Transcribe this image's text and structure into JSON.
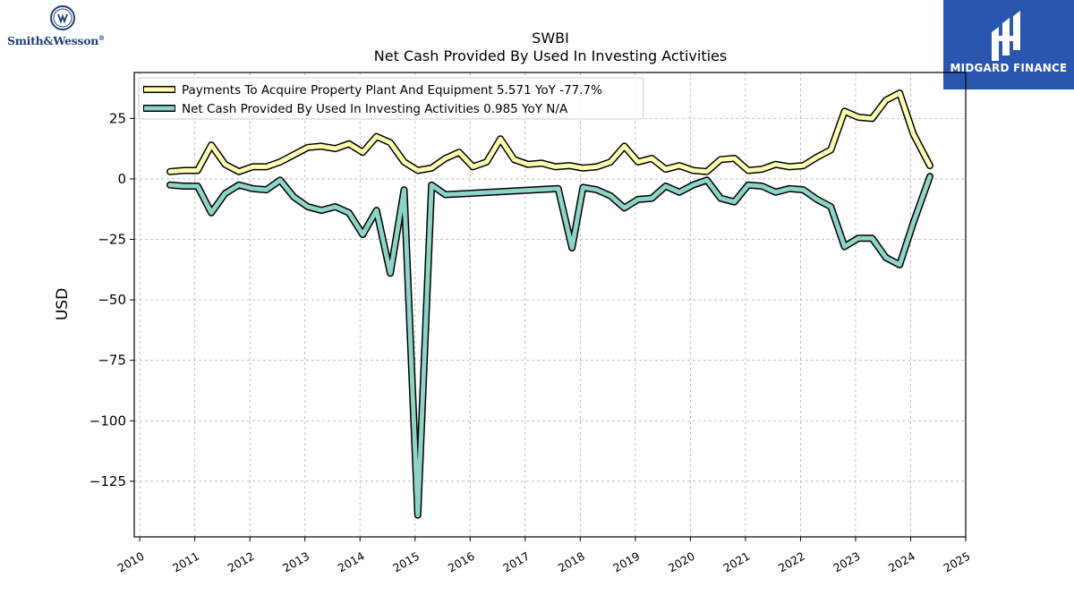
{
  "header": {
    "left_brand": "Smith&Wesson",
    "left_brand_mark": "®",
    "right_brand": "MIDGARD FINANCE"
  },
  "colors": {
    "series_1": "#ffffb3",
    "series_2": "#8dd3c7",
    "outline": "#000000",
    "grid": "#b0b0b0",
    "brand_blue": "#2a56b0",
    "brand_text_blue": "#1f3f7a"
  },
  "chart_data": {
    "type": "line",
    "title": "SWBI",
    "subtitle": "Net Cash Provided By Used In Investing Activities",
    "xlabel": "",
    "ylabel": "USD",
    "xlim": [
      2009.9,
      2025.0
    ],
    "ylim": [
      -148,
      44
    ],
    "grid": true,
    "legend_position": "top-left",
    "x_ticks": [
      2010,
      2011,
      2012,
      2013,
      2014,
      2015,
      2016,
      2017,
      2018,
      2019,
      2020,
      2021,
      2022,
      2023,
      2024,
      2025
    ],
    "x_tick_labels": [
      "2010",
      "2011",
      "2012",
      "2013",
      "2014",
      "2015",
      "2016",
      "2017",
      "2018",
      "2019",
      "2020",
      "2021",
      "2022",
      "2023",
      "2024",
      "2025"
    ],
    "y_ticks": [
      25,
      0,
      -25,
      -50,
      -75,
      -100,
      -125
    ],
    "y_tick_labels": [
      "25",
      "0",
      "−25",
      "−50",
      "−75",
      "−100",
      "−125"
    ],
    "series": [
      {
        "name": "Payments To Acquire Property Plant And Equipment",
        "legend_label": "Payments To Acquire Property Plant And Equipment  5.571 YoY -77.7%",
        "color": "#ffffb3",
        "points": [
          [
            2010.55,
            3.0
          ],
          [
            2010.8,
            3.5
          ],
          [
            2011.05,
            3.5
          ],
          [
            2011.3,
            14.0
          ],
          [
            2011.55,
            6.0
          ],
          [
            2011.8,
            3.0
          ],
          [
            2012.05,
            5.0
          ],
          [
            2012.3,
            5.0
          ],
          [
            2012.55,
            7.0
          ],
          [
            2012.8,
            10.0
          ],
          [
            2013.05,
            13.0
          ],
          [
            2013.3,
            13.5
          ],
          [
            2013.55,
            12.5
          ],
          [
            2013.8,
            14.5
          ],
          [
            2014.05,
            11.0
          ],
          [
            2014.3,
            17.5
          ],
          [
            2014.55,
            15.0
          ],
          [
            2014.8,
            7.0
          ],
          [
            2015.05,
            3.5
          ],
          [
            2015.3,
            4.5
          ],
          [
            2015.55,
            8.5
          ],
          [
            2015.8,
            11.0
          ],
          [
            2016.05,
            5.0
          ],
          [
            2016.3,
            7.0
          ],
          [
            2016.55,
            16.5
          ],
          [
            2016.8,
            8.0
          ],
          [
            2017.05,
            6.0
          ],
          [
            2017.3,
            6.5
          ],
          [
            2017.55,
            5.0
          ],
          [
            2017.8,
            5.5
          ],
          [
            2018.05,
            4.5
          ],
          [
            2018.3,
            5.0
          ],
          [
            2018.55,
            7.0
          ],
          [
            2018.8,
            13.5
          ],
          [
            2019.05,
            7.0
          ],
          [
            2019.3,
            8.5
          ],
          [
            2019.55,
            4.0
          ],
          [
            2019.8,
            5.5
          ],
          [
            2020.05,
            3.5
          ],
          [
            2020.3,
            3.0
          ],
          [
            2020.55,
            8.0
          ],
          [
            2020.8,
            8.5
          ],
          [
            2021.05,
            3.5
          ],
          [
            2021.3,
            4.0
          ],
          [
            2021.55,
            6.0
          ],
          [
            2021.8,
            5.0
          ],
          [
            2022.05,
            5.5
          ],
          [
            2022.3,
            9.0
          ],
          [
            2022.55,
            12.0
          ],
          [
            2022.8,
            28.0
          ],
          [
            2023.05,
            25.5
          ],
          [
            2023.3,
            25.0
          ],
          [
            2023.55,
            32.5
          ],
          [
            2023.8,
            35.5
          ],
          [
            2024.05,
            18.5
          ],
          [
            2024.35,
            5.5
          ]
        ]
      },
      {
        "name": "Net Cash Provided By Used In Investing Activities",
        "legend_label": "Net Cash Provided By Used In Investing Activities  0.985 YoY N/A",
        "color": "#8dd3c7",
        "points": [
          [
            2010.55,
            -2.5
          ],
          [
            2010.8,
            -3.0
          ],
          [
            2011.05,
            -3.0
          ],
          [
            2011.3,
            -14.0
          ],
          [
            2011.55,
            -6.0
          ],
          [
            2011.8,
            -2.5
          ],
          [
            2012.05,
            -4.0
          ],
          [
            2012.3,
            -4.5
          ],
          [
            2012.55,
            -0.5
          ],
          [
            2012.8,
            -7.5
          ],
          [
            2013.05,
            -11.5
          ],
          [
            2013.3,
            -13.0
          ],
          [
            2013.55,
            -11.5
          ],
          [
            2013.8,
            -14.0
          ],
          [
            2014.05,
            -23.0
          ],
          [
            2014.3,
            -13.0
          ],
          [
            2014.55,
            -39.0
          ],
          [
            2014.8,
            -4.5
          ],
          [
            2015.05,
            -139.0
          ],
          [
            2015.3,
            -2.5
          ],
          [
            2015.55,
            -6.5
          ],
          [
            2017.6,
            -4.0
          ],
          [
            2017.85,
            -28.5
          ],
          [
            2018.05,
            -3.5
          ],
          [
            2018.3,
            -4.5
          ],
          [
            2018.55,
            -7.0
          ],
          [
            2018.8,
            -12.0
          ],
          [
            2019.05,
            -8.5
          ],
          [
            2019.3,
            -8.0
          ],
          [
            2019.55,
            -3.0
          ],
          [
            2019.8,
            -5.5
          ],
          [
            2020.05,
            -2.5
          ],
          [
            2020.3,
            -0.5
          ],
          [
            2020.55,
            -8.0
          ],
          [
            2020.8,
            -9.5
          ],
          [
            2021.05,
            -2.5
          ],
          [
            2021.3,
            -3.0
          ],
          [
            2021.55,
            -5.5
          ],
          [
            2021.8,
            -4.0
          ],
          [
            2022.05,
            -4.5
          ],
          [
            2022.3,
            -8.5
          ],
          [
            2022.55,
            -11.5
          ],
          [
            2022.8,
            -28.0
          ],
          [
            2023.05,
            -24.5
          ],
          [
            2023.3,
            -24.5
          ],
          [
            2023.55,
            -32.5
          ],
          [
            2023.8,
            -35.5
          ],
          [
            2024.05,
            -18.0
          ],
          [
            2024.35,
            1.0
          ]
        ]
      }
    ]
  }
}
